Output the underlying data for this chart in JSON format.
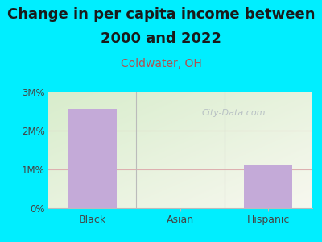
{
  "title_line1": "Change in per capita income between",
  "title_line2": "2000 and 2022",
  "subtitle": "Coldwater, OH",
  "categories": [
    "Black",
    "Asian",
    "Hispanic"
  ],
  "values": [
    2.57,
    0,
    1.12
  ],
  "bar_color": "#c4aad8",
  "title_fontsize": 13,
  "subtitle_fontsize": 10,
  "subtitle_color": "#b05050",
  "title_color": "#1a1a1a",
  "bg_color": "#00eeff",
  "plot_bg_top_left": "#d8edcc",
  "plot_bg_bottom_right": "#f8f8f0",
  "ylim": [
    0,
    3.0
  ],
  "yticks": [
    0,
    1,
    2,
    3
  ],
  "ytick_labels": [
    "0%",
    "1M%",
    "2M%",
    "3M%"
  ],
  "watermark": "City-Data.com",
  "grid_color": "#ddb0b0",
  "tick_color": "#444444",
  "axis_line_color": "#bbbbbb"
}
